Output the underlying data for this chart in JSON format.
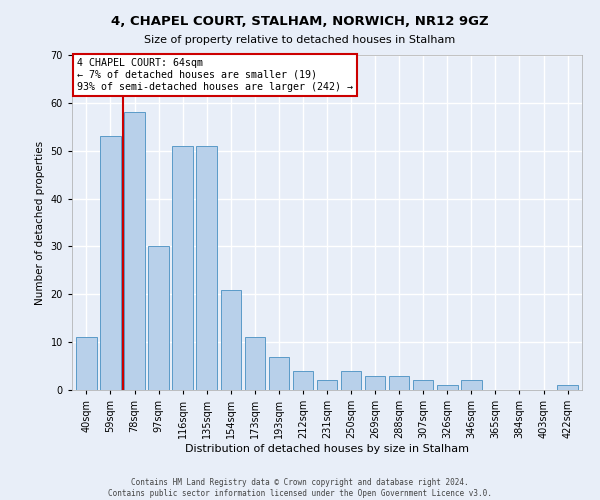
{
  "title": "4, CHAPEL COURT, STALHAM, NORWICH, NR12 9GZ",
  "subtitle": "Size of property relative to detached houses in Stalham",
  "xlabel": "Distribution of detached houses by size in Stalham",
  "ylabel": "Number of detached properties",
  "categories": [
    "40sqm",
    "59sqm",
    "78sqm",
    "97sqm",
    "116sqm",
    "135sqm",
    "154sqm",
    "173sqm",
    "193sqm",
    "212sqm",
    "231sqm",
    "250sqm",
    "269sqm",
    "288sqm",
    "307sqm",
    "326sqm",
    "346sqm",
    "365sqm",
    "384sqm",
    "403sqm",
    "422sqm"
  ],
  "values": [
    11,
    53,
    58,
    30,
    51,
    51,
    21,
    11,
    7,
    4,
    2,
    4,
    3,
    3,
    2,
    1,
    2,
    0,
    0,
    0,
    1
  ],
  "bar_color": "#b8d0ea",
  "bar_edge_color": "#5a9ac8",
  "marker_color": "#cc0000",
  "annotation_text": "4 CHAPEL COURT: 64sqm\n← 7% of detached houses are smaller (19)\n93% of semi-detached houses are larger (242) →",
  "annotation_box_color": "#ffffff",
  "annotation_box_edge": "#cc0000",
  "ylim": [
    0,
    70
  ],
  "yticks": [
    0,
    10,
    20,
    30,
    40,
    50,
    60,
    70
  ],
  "background_color": "#e8eef8",
  "fig_color": "#e8eef8",
  "grid_color": "#ffffff",
  "footer_line1": "Contains HM Land Registry data © Crown copyright and database right 2024.",
  "footer_line2": "Contains public sector information licensed under the Open Government Licence v3.0."
}
